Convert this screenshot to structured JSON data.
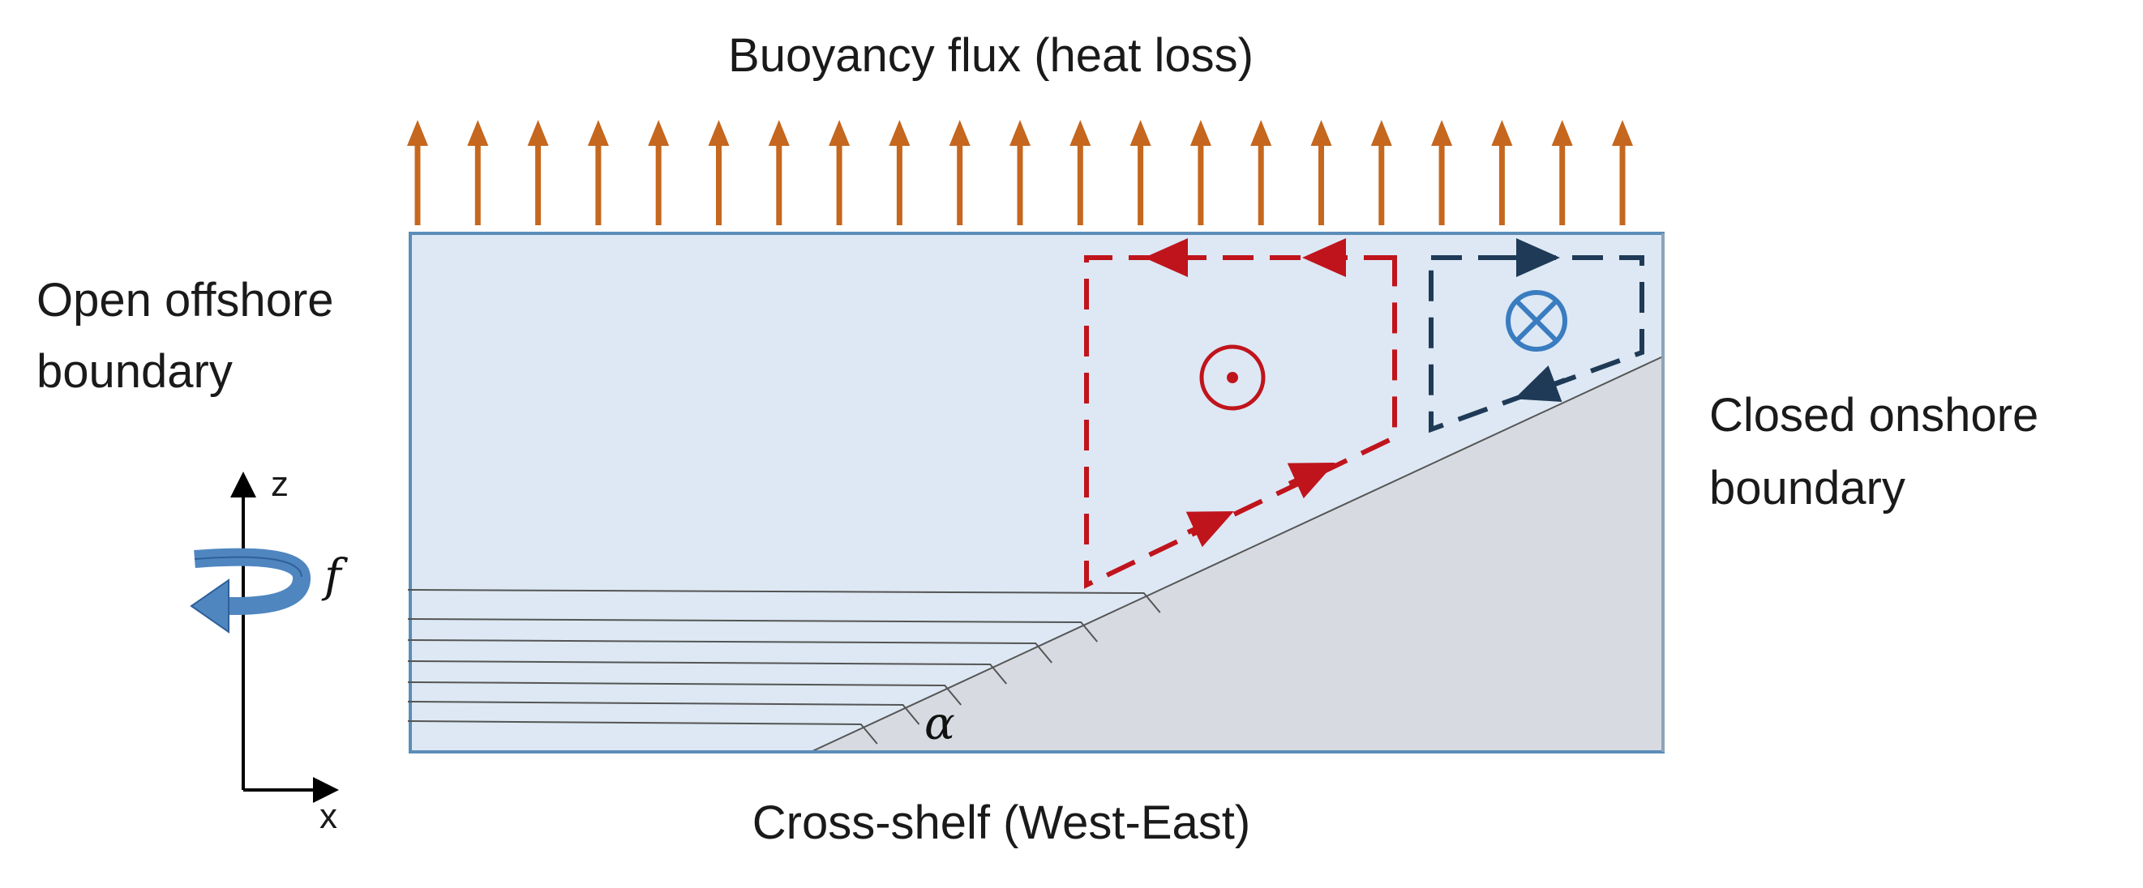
{
  "labels": {
    "title": "Buoyancy flux (heat loss)",
    "left_boundary_line1": "Open offshore",
    "left_boundary_line2": "boundary",
    "right_boundary_line1": "Closed onshore",
    "right_boundary_line2": "boundary",
    "bottom_axis": "Cross-shelf (West-East)",
    "axis_z": "z",
    "axis_x": "x",
    "rotation": "f",
    "slope_angle": "α"
  },
  "colors": {
    "flux_arrow": "#C5671E",
    "domain_fill": "#DDE8F4",
    "domain_border": "#5B8DB8",
    "shelf_fill": "#D7DBE1",
    "red_cell": "#C0141C",
    "dark_cell": "#1F3A56",
    "cross_symbol": "#3A7CC0",
    "rotation_arrow": "#4F86C0"
  },
  "icons": {
    "out_of_page": "circle-dot-icon",
    "into_page": "circle-cross-icon",
    "rotation": "curved-rotation-arrow-icon"
  }
}
